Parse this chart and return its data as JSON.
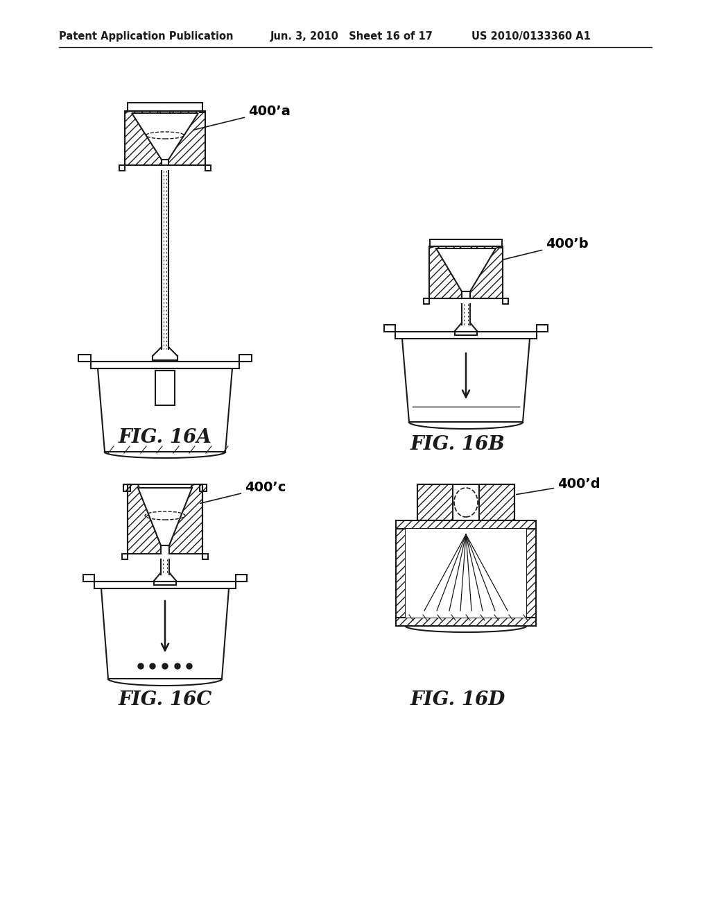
{
  "title_left": "Patent Application Publication",
  "title_mid": "Jun. 3, 2010   Sheet 16 of 17",
  "title_right": "US 2010/0133360 A1",
  "fig_labels": [
    "FIG. 16A",
    "FIG. 16B",
    "FIG. 16C",
    "FIG. 16D"
  ],
  "ref_labels": [
    "400’a",
    "400’b",
    "400’c",
    "400’d"
  ],
  "bg_color": "#ffffff",
  "line_color": "#1a1a1a",
  "fig_label_fontsize": 20,
  "header_fontsize": 11
}
